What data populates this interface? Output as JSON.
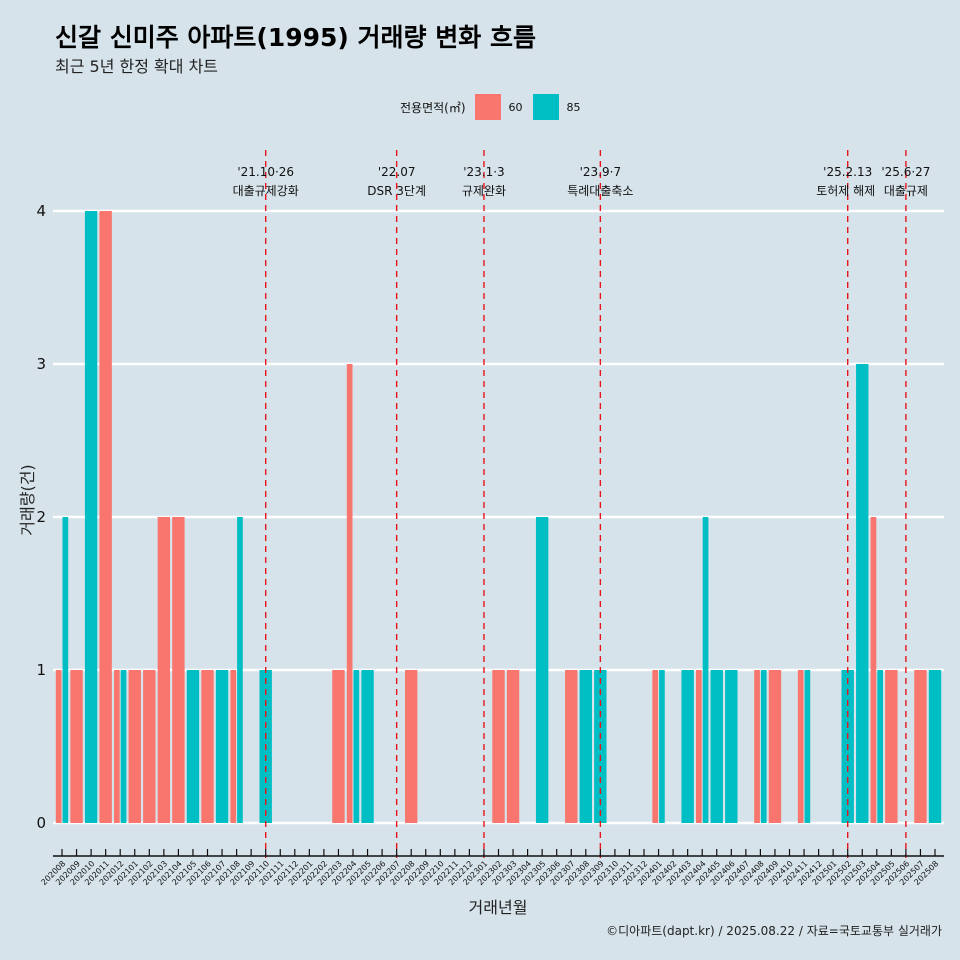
{
  "title": "신갈 신미주 아파트(1995) 거래량 변화 흐름",
  "subtitle": "최근 5년 한정 확대 차트",
  "footer": "©디아파트(dapt.kr) / 2025.08.22 / 자료=국토교통부 실거래가",
  "chart_data": {
    "type": "bar",
    "title": "신갈 신미주 아파트(1995) 거래량 변화 흐름",
    "subtitle": "최근 5년 한정 확대 차트",
    "xlabel": "거래년월",
    "ylabel": "거래량(건)",
    "ylim": [
      0,
      4
    ],
    "yticks": [
      "0",
      "1",
      "2",
      "3",
      "4"
    ],
    "legend": {
      "title": "전용면적(㎡)",
      "position": "top"
    },
    "categories": [
      "202008",
      "202009",
      "202010",
      "202011",
      "202012",
      "202101",
      "202102",
      "202103",
      "202104",
      "202105",
      "202106",
      "202107",
      "202108",
      "202109",
      "202110",
      "202111",
      "202112",
      "202201",
      "202202",
      "202203",
      "202204",
      "202205",
      "202206",
      "202207",
      "202208",
      "202209",
      "202210",
      "202211",
      "202212",
      "202301",
      "202302",
      "202303",
      "202304",
      "202305",
      "202306",
      "202307",
      "202308",
      "202309",
      "202310",
      "202311",
      "202312",
      "202401",
      "202402",
      "202403",
      "202404",
      "202405",
      "202406",
      "202407",
      "202408",
      "202409",
      "202410",
      "202411",
      "202412",
      "202501",
      "202502",
      "202503",
      "202504",
      "202505",
      "202506",
      "202507",
      "202508"
    ],
    "series": [
      {
        "name": "60",
        "color": "#f8766d",
        "values": [
          1,
          1,
          0,
          4,
          1,
          1,
          1,
          2,
          2,
          0,
          1,
          0,
          1,
          0,
          0,
          0,
          0,
          0,
          0,
          1,
          3,
          0,
          0,
          0,
          1,
          0,
          0,
          0,
          0,
          0,
          1,
          1,
          0,
          0,
          0,
          1,
          0,
          0,
          0,
          0,
          0,
          1,
          0,
          0,
          1,
          0,
          0,
          0,
          1,
          1,
          0,
          1,
          0,
          0,
          0,
          0,
          2,
          1,
          0,
          1,
          0
        ]
      },
      {
        "name": "85",
        "color": "#00bfc4",
        "values": [
          2,
          0,
          4,
          0,
          1,
          0,
          0,
          0,
          0,
          1,
          0,
          1,
          2,
          0,
          1,
          0,
          0,
          0,
          0,
          0,
          1,
          1,
          0,
          0,
          0,
          0,
          0,
          0,
          0,
          0,
          0,
          0,
          0,
          2,
          0,
          0,
          1,
          1,
          0,
          0,
          0,
          1,
          0,
          1,
          2,
          1,
          1,
          0,
          1,
          0,
          0,
          1,
          0,
          0,
          1,
          3,
          1,
          0,
          0,
          0,
          1
        ]
      }
    ],
    "annotations": [
      {
        "at": "202110",
        "date": "'21.10·26",
        "label": "대출규제강화"
      },
      {
        "at": "202207",
        "date": "'22.07",
        "label": "DSR 3단계"
      },
      {
        "at": "202301",
        "date": "'23.1·3",
        "label": "규제완화"
      },
      {
        "at": "202309",
        "date": "'23.9·7",
        "label": "특례대출축소"
      },
      {
        "at": "202502",
        "date": "'25.2.13",
        "label": "토허제 해제"
      },
      {
        "at": "202506",
        "date": "'25.6·27",
        "label": "대출규제"
      }
    ],
    "grid": true
  }
}
